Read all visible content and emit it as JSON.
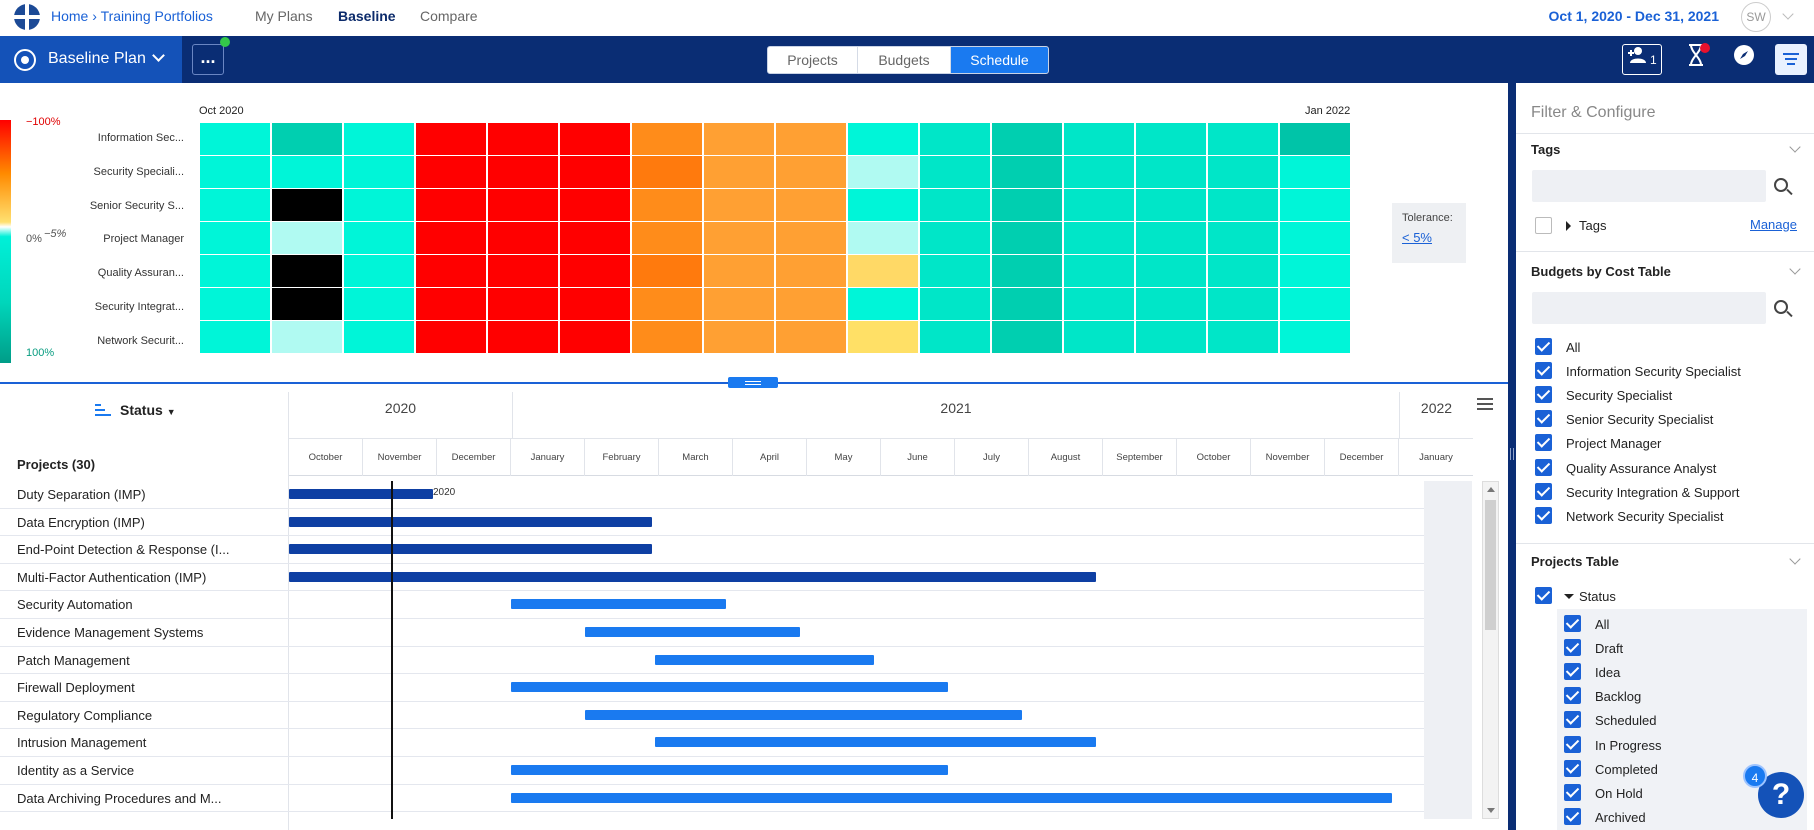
{
  "nav": {
    "home": "Home",
    "separator": "›",
    "current": "Training Portfolios",
    "links": [
      "My Plans",
      "Baseline",
      "Compare"
    ],
    "active": "Baseline",
    "date_range": "Oct 1, 2020 - Dec 31, 2021",
    "avatar": "SW"
  },
  "toolbar": {
    "plan_label": "Baseline Plan",
    "more_label": "...",
    "tabs": [
      "Projects",
      "Budgets",
      "Schedule"
    ],
    "active_tab": "Schedule",
    "add_user_count": "1"
  },
  "heatmap": {
    "legend_top": "−100%",
    "legend_mid": "0%",
    "legend_mid2": "−5%",
    "legend_bottom": "100%",
    "start_label": "Oct 2020",
    "end_label": "Jan 2022",
    "rows": [
      "Information Sec...",
      "Security Speciali...",
      "Senior Security S...",
      "Project Manager",
      "Quality Assuran...",
      "Security Integrat...",
      "Network Securit..."
    ],
    "colors": [
      [
        "#00f5d8",
        "#00cfb0",
        "#00f5d8",
        "#ff0000",
        "#ff0000",
        "#ff0000",
        "#ff8c1a",
        "#ffa033",
        "#ffa033",
        "#00f5d8",
        "#00e6c8",
        "#00cfb0",
        "#00e6c8",
        "#00e6c8",
        "#00e6c8",
        "#00c4a8"
      ],
      [
        "#00f5d8",
        "#00f5d8",
        "#00f5d8",
        "#ff0000",
        "#ff0000",
        "#ff0000",
        "#ff7a0d",
        "#ffa033",
        "#ffa033",
        "#b0faf2",
        "#00e6c8",
        "#00cfb0",
        "#00e6c8",
        "#00e6c8",
        "#00e6c8",
        "#00f5d8"
      ],
      [
        "#00f5d8",
        "#000000",
        "#00f5d8",
        "#ff0000",
        "#ff0000",
        "#ff0000",
        "#ff8c1a",
        "#ffa033",
        "#ffa033",
        "#00f5d8",
        "#00e6c8",
        "#00cfb0",
        "#00e6c8",
        "#00e6c8",
        "#00e6c8",
        "#00f5d8"
      ],
      [
        "#00f5d8",
        "#b0faf2",
        "#00f5d8",
        "#ff0000",
        "#ff0000",
        "#ff0000",
        "#ff8c1a",
        "#ffa033",
        "#ffa033",
        "#b0faf2",
        "#00e6c8",
        "#00cfb0",
        "#00e6c8",
        "#00e6c8",
        "#00e6c8",
        "#00f5d8"
      ],
      [
        "#00f5d8",
        "#000000",
        "#00f5d8",
        "#ff0000",
        "#ff0000",
        "#ff0000",
        "#ff7a0d",
        "#ffa033",
        "#ffa033",
        "#ffd966",
        "#00e6c8",
        "#00cfb0",
        "#00e6c8",
        "#00e6c8",
        "#00e6c8",
        "#00f5d8"
      ],
      [
        "#00f5d8",
        "#000000",
        "#00f5d8",
        "#ff0000",
        "#ff0000",
        "#ff0000",
        "#ff8c1a",
        "#ffa033",
        "#ffa033",
        "#00f5d8",
        "#00e6c8",
        "#00cfb0",
        "#00e6c8",
        "#00e6c8",
        "#00e6c8",
        "#00f5d8"
      ],
      [
        "#00f5d8",
        "#b0faf2",
        "#00f5d8",
        "#ff0000",
        "#ff0000",
        "#ff0000",
        "#ff8c1a",
        "#ffa033",
        "#ffa033",
        "#ffe066",
        "#00e6c8",
        "#00cfb0",
        "#00e6c8",
        "#00e6c8",
        "#00e6c8",
        "#00f5d8"
      ]
    ],
    "tolerance_label": "Tolerance:",
    "tolerance_value": "< 5%"
  },
  "gantt": {
    "sort_label": "Status",
    "projects_header": "Projects (30)",
    "years": [
      "2020",
      "2021",
      "2022"
    ],
    "months": [
      "October",
      "November",
      "December",
      "January",
      "February",
      "March",
      "April",
      "May",
      "June",
      "July",
      "August",
      "September",
      "October",
      "November",
      "December",
      "January"
    ],
    "bar_label": "2020",
    "rows": [
      {
        "name": "Duty Separation (IMP)",
        "tone": "dark",
        "start": 0.0,
        "end": 1.95
      },
      {
        "name": "Data Encryption (IMP)",
        "tone": "dark",
        "start": 0.0,
        "end": 4.9
      },
      {
        "name": "End-Point Detection & Response (I...",
        "tone": "dark",
        "start": 0.0,
        "end": 4.9
      },
      {
        "name": "Multi-Factor Authentication (IMP)",
        "tone": "dark",
        "start": 0.0,
        "end": 10.9
      },
      {
        "name": "Security Automation",
        "tone": "light",
        "start": 3.0,
        "end": 5.9
      },
      {
        "name": "Evidence Management Systems",
        "tone": "light",
        "start": 4.0,
        "end": 6.9
      },
      {
        "name": "Patch Management",
        "tone": "light",
        "start": 4.95,
        "end": 7.9
      },
      {
        "name": "Firewall Deployment",
        "tone": "light",
        "start": 3.0,
        "end": 8.9
      },
      {
        "name": "Regulatory Compliance",
        "tone": "light",
        "start": 4.0,
        "end": 9.9
      },
      {
        "name": "Intrusion Management",
        "tone": "light",
        "start": 4.95,
        "end": 10.9
      },
      {
        "name": "Identity as a Service",
        "tone": "light",
        "start": 3.0,
        "end": 8.9
      },
      {
        "name": "Data Archiving Procedures and M...",
        "tone": "light",
        "start": 3.0,
        "end": 14.9
      }
    ]
  },
  "panel": {
    "title": "Filter & Configure",
    "tags": {
      "heading": "Tags",
      "search_placeholder": "",
      "item": "Tags",
      "manage": "Manage"
    },
    "budgets": {
      "heading": "Budgets by Cost Table",
      "items": [
        "All",
        "Information Security Specialist",
        "Security Specialist",
        "Senior Security Specialist",
        "Project Manager",
        "Quality Assurance Analyst",
        "Security Integration & Support",
        "Network Security Specialist"
      ]
    },
    "projects_table": {
      "heading": "Projects Table",
      "group": "Status",
      "items": [
        "All",
        "Draft",
        "Idea",
        "Backlog",
        "Scheduled",
        "In Progress",
        "Completed",
        "On Hold",
        "Archived"
      ]
    },
    "help_badge": "4",
    "help_icon": "?"
  }
}
